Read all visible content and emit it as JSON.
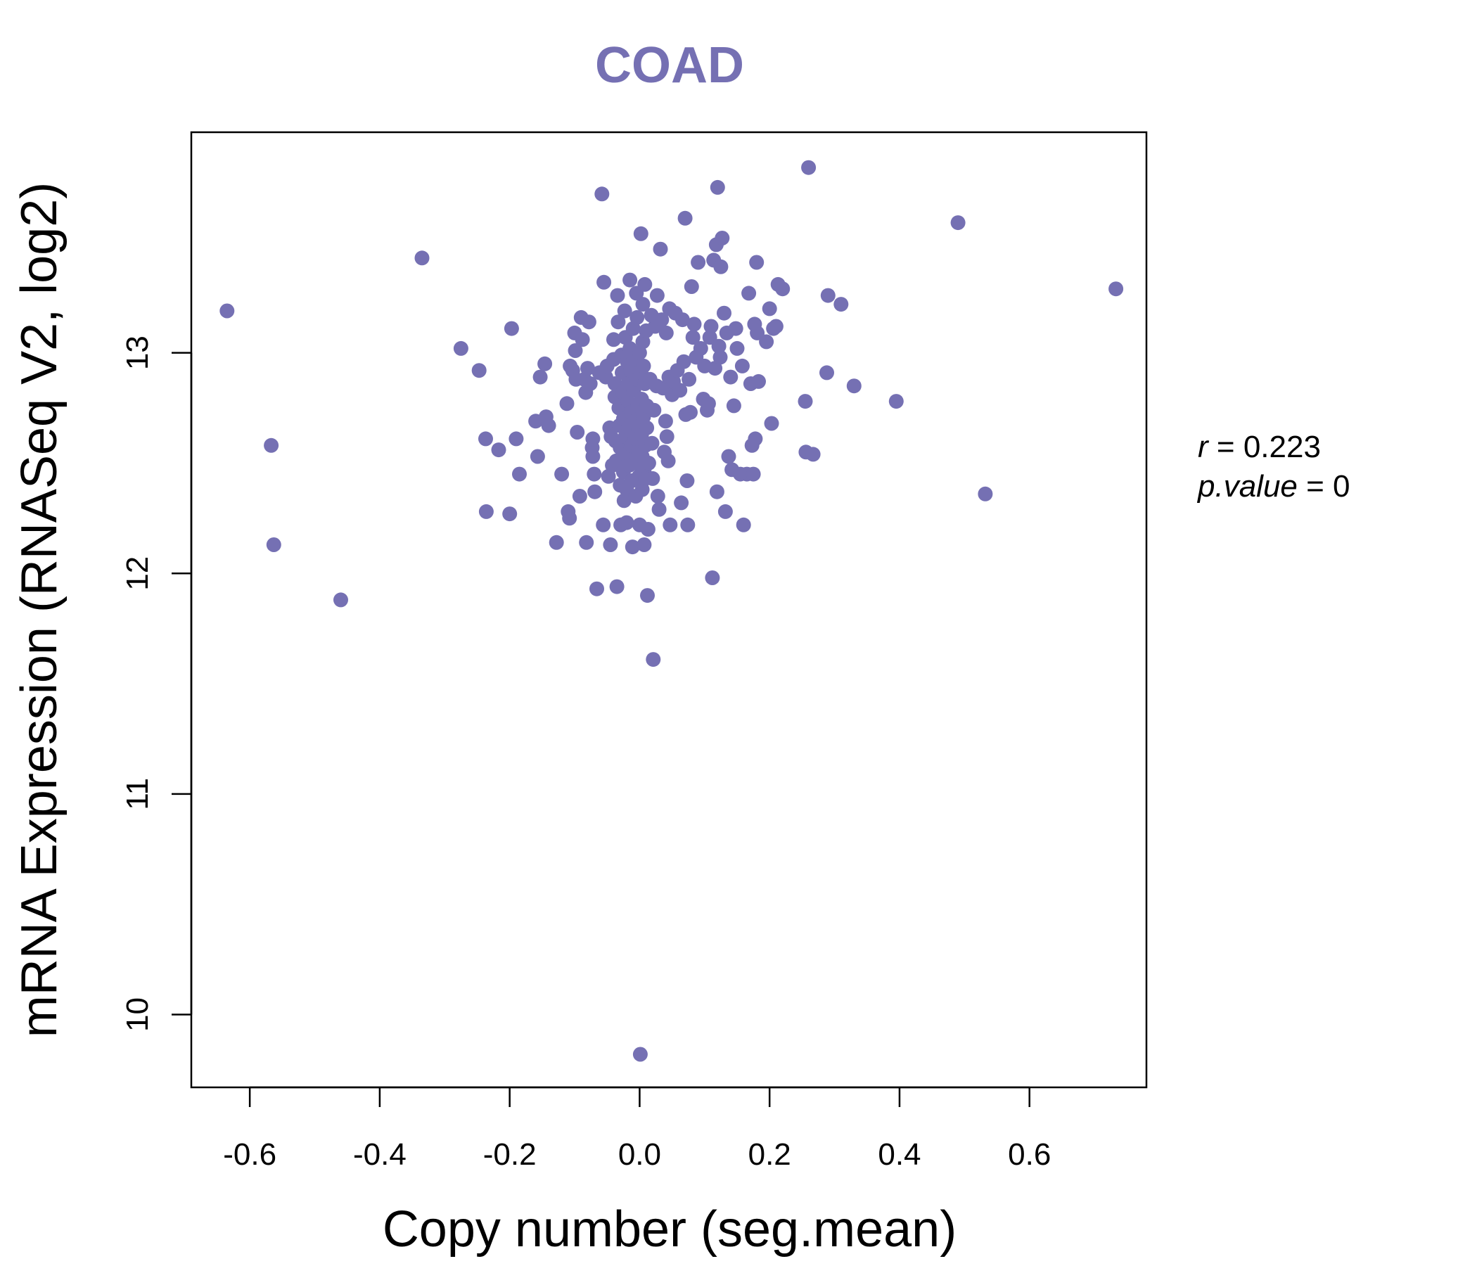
{
  "chart_data": {
    "type": "scatter",
    "title": "COAD",
    "xlabel": "Copy number (seg.mean)",
    "ylabel": "mRNA Expression (RNASeq V2, log2)",
    "xlim": [
      -0.69,
      0.78
    ],
    "ylim": [
      9.67,
      14.0
    ],
    "x_ticks": [
      -0.6,
      -0.4,
      -0.2,
      0.0,
      0.2,
      0.4,
      0.6
    ],
    "x_tick_labels": [
      "-0.6",
      "-0.4",
      "-0.2",
      "0.0",
      "0.2",
      "0.4",
      "0.6"
    ],
    "y_ticks": [
      10,
      11,
      12,
      13
    ],
    "y_tick_labels": [
      "10",
      "11",
      "12",
      "13"
    ],
    "grid": false,
    "series": [
      {
        "color": "#7570b3",
        "points": [
          [
            -0.635,
            13.19
          ],
          [
            -0.567,
            12.58
          ],
          [
            -0.563,
            12.13
          ],
          [
            -0.46,
            11.88
          ],
          [
            -0.335,
            13.43
          ],
          [
            -0.275,
            13.02
          ],
          [
            -0.247,
            12.92
          ],
          [
            -0.237,
            12.61
          ],
          [
            -0.236,
            12.28
          ],
          [
            -0.217,
            12.56
          ],
          [
            -0.2,
            12.27
          ],
          [
            -0.197,
            13.11
          ],
          [
            -0.19,
            12.61
          ],
          [
            -0.185,
            12.45
          ],
          [
            -0.16,
            12.69
          ],
          [
            -0.157,
            12.53
          ],
          [
            -0.153,
            12.89
          ],
          [
            -0.146,
            12.95
          ],
          [
            -0.144,
            12.71
          ],
          [
            -0.14,
            12.67
          ],
          [
            -0.128,
            12.14
          ],
          [
            -0.12,
            12.45
          ],
          [
            -0.112,
            12.77
          ],
          [
            -0.11,
            12.28
          ],
          [
            -0.108,
            12.25
          ],
          [
            -0.107,
            12.94
          ],
          [
            -0.103,
            12.92
          ],
          [
            -0.1,
            13.09
          ],
          [
            -0.099,
            13.01
          ],
          [
            -0.098,
            12.88
          ],
          [
            -0.096,
            12.64
          ],
          [
            -0.092,
            12.35
          ],
          [
            -0.09,
            13.16
          ],
          [
            -0.088,
            13.06
          ],
          [
            -0.085,
            12.88
          ],
          [
            -0.083,
            12.82
          ],
          [
            -0.08,
            12.93
          ],
          [
            -0.082,
            12.14
          ],
          [
            -0.078,
            13.14
          ],
          [
            -0.076,
            12.86
          ],
          [
            -0.073,
            12.57
          ],
          [
            -0.072,
            12.61
          ],
          [
            -0.072,
            12.53
          ],
          [
            -0.07,
            12.45
          ],
          [
            -0.069,
            12.37
          ],
          [
            -0.066,
            11.93
          ],
          [
            -0.062,
            12.91
          ],
          [
            -0.058,
            13.72
          ],
          [
            -0.056,
            12.22
          ],
          [
            -0.055,
            13.32
          ],
          [
            -0.052,
            12.89
          ],
          [
            -0.05,
            12.94
          ],
          [
            -0.048,
            12.44
          ],
          [
            -0.046,
            12.66
          ],
          [
            -0.045,
            12.13
          ],
          [
            -0.044,
            12.62
          ],
          [
            -0.042,
            12.49
          ],
          [
            -0.04,
            13.06
          ],
          [
            -0.04,
            12.97
          ],
          [
            -0.038,
            12.86
          ],
          [
            -0.038,
            12.8
          ],
          [
            -0.037,
            12.6
          ],
          [
            -0.036,
            12.51
          ],
          [
            -0.035,
            11.94
          ],
          [
            -0.034,
            13.26
          ],
          [
            -0.033,
            13.14
          ],
          [
            -0.032,
            12.75
          ],
          [
            -0.031,
            12.67
          ],
          [
            -0.03,
            12.57
          ],
          [
            -0.03,
            12.4
          ],
          [
            -0.029,
            12.22
          ],
          [
            -0.028,
            12.99
          ],
          [
            -0.027,
            12.91
          ],
          [
            -0.026,
            12.82
          ],
          [
            -0.025,
            12.7
          ],
          [
            -0.025,
            12.46
          ],
          [
            -0.024,
            12.33
          ],
          [
            -0.023,
            13.19
          ],
          [
            -0.022,
            13.07
          ],
          [
            -0.022,
            12.62
          ],
          [
            -0.021,
            12.54
          ],
          [
            -0.02,
            12.38
          ],
          [
            -0.02,
            12.23
          ],
          [
            -0.019,
            12.96
          ],
          [
            -0.018,
            12.86
          ],
          [
            -0.018,
            12.78
          ],
          [
            -0.017,
            12.66
          ],
          [
            -0.016,
            12.49
          ],
          [
            -0.015,
            13.33
          ],
          [
            -0.015,
            13.02
          ],
          [
            -0.014,
            12.92
          ],
          [
            -0.013,
            12.73
          ],
          [
            -0.012,
            12.58
          ],
          [
            -0.012,
            12.42
          ],
          [
            -0.011,
            12.12
          ],
          [
            -0.01,
            13.11
          ],
          [
            -0.009,
            12.97
          ],
          [
            -0.009,
            12.83
          ],
          [
            -0.008,
            12.69
          ],
          [
            -0.007,
            12.61
          ],
          [
            -0.006,
            12.5
          ],
          [
            -0.006,
            12.35
          ],
          [
            -0.005,
            13.27
          ],
          [
            -0.004,
            13.16
          ],
          [
            -0.004,
            12.88
          ],
          [
            -0.003,
            12.76
          ],
          [
            -0.002,
            12.65
          ],
          [
            -0.002,
            12.55
          ],
          [
            -0.001,
            12.44
          ],
          [
            0.0,
            13.0
          ],
          [
            0.0,
            12.22
          ],
          [
            0.001,
            9.82
          ],
          [
            0.002,
            13.54
          ],
          [
            0.002,
            12.91
          ],
          [
            0.003,
            12.79
          ],
          [
            0.003,
            12.63
          ],
          [
            0.004,
            12.53
          ],
          [
            0.004,
            12.38
          ],
          [
            0.005,
            13.22
          ],
          [
            0.005,
            13.05
          ],
          [
            0.006,
            12.94
          ],
          [
            0.006,
            12.71
          ],
          [
            0.007,
            12.47
          ],
          [
            0.007,
            12.13
          ],
          [
            0.008,
            13.31
          ],
          [
            0.008,
            12.86
          ],
          [
            0.009,
            12.58
          ],
          [
            0.009,
            12.43
          ],
          [
            0.01,
            13.1
          ],
          [
            0.011,
            12.76
          ],
          [
            0.011,
            12.66
          ],
          [
            0.012,
            11.9
          ],
          [
            0.013,
            12.2
          ],
          [
            0.014,
            12.5
          ],
          [
            0.016,
            12.88
          ],
          [
            0.018,
            13.17
          ],
          [
            0.019,
            12.59
          ],
          [
            0.02,
            12.43
          ],
          [
            0.021,
            11.61
          ],
          [
            0.022,
            12.74
          ],
          [
            0.024,
            13.12
          ],
          [
            0.026,
            12.85
          ],
          [
            0.027,
            13.26
          ],
          [
            0.028,
            12.35
          ],
          [
            0.03,
            12.29
          ],
          [
            0.032,
            13.47
          ],
          [
            0.034,
            13.15
          ],
          [
            0.036,
            12.84
          ],
          [
            0.038,
            12.55
          ],
          [
            0.04,
            12.69
          ],
          [
            0.041,
            13.09
          ],
          [
            0.042,
            12.62
          ],
          [
            0.044,
            12.51
          ],
          [
            0.045,
            12.89
          ],
          [
            0.046,
            13.2
          ],
          [
            0.047,
            12.22
          ],
          [
            0.05,
            12.81
          ],
          [
            0.052,
            12.87
          ],
          [
            0.055,
            13.18
          ],
          [
            0.058,
            12.92
          ],
          [
            0.062,
            12.83
          ],
          [
            0.064,
            12.32
          ],
          [
            0.066,
            13.15
          ],
          [
            0.068,
            12.96
          ],
          [
            0.07,
            13.61
          ],
          [
            0.071,
            12.72
          ],
          [
            0.073,
            12.42
          ],
          [
            0.074,
            12.22
          ],
          [
            0.076,
            12.88
          ],
          [
            0.078,
            12.73
          ],
          [
            0.08,
            13.3
          ],
          [
            0.082,
            13.07
          ],
          [
            0.084,
            13.13
          ],
          [
            0.087,
            12.98
          ],
          [
            0.09,
            13.41
          ],
          [
            0.094,
            13.02
          ],
          [
            0.098,
            12.79
          ],
          [
            0.1,
            12.94
          ],
          [
            0.104,
            12.74
          ],
          [
            0.106,
            12.77
          ],
          [
            0.108,
            13.07
          ],
          [
            0.11,
            13.12
          ],
          [
            0.112,
            11.98
          ],
          [
            0.114,
            13.42
          ],
          [
            0.116,
            12.93
          ],
          [
            0.118,
            13.49
          ],
          [
            0.119,
            12.37
          ],
          [
            0.12,
            13.75
          ],
          [
            0.122,
            13.03
          ],
          [
            0.124,
            12.98
          ],
          [
            0.125,
            13.39
          ],
          [
            0.127,
            13.52
          ],
          [
            0.13,
            13.18
          ],
          [
            0.132,
            12.28
          ],
          [
            0.134,
            13.09
          ],
          [
            0.137,
            12.53
          ],
          [
            0.14,
            12.89
          ],
          [
            0.142,
            12.47
          ],
          [
            0.145,
            12.76
          ],
          [
            0.148,
            13.11
          ],
          [
            0.15,
            13.02
          ],
          [
            0.155,
            12.45
          ],
          [
            0.158,
            12.94
          ],
          [
            0.16,
            12.22
          ],
          [
            0.165,
            12.45
          ],
          [
            0.168,
            13.27
          ],
          [
            0.171,
            12.86
          ],
          [
            0.173,
            12.58
          ],
          [
            0.175,
            12.45
          ],
          [
            0.177,
            13.13
          ],
          [
            0.178,
            12.61
          ],
          [
            0.18,
            13.41
          ],
          [
            0.181,
            13.09
          ],
          [
            0.183,
            12.87
          ],
          [
            0.195,
            13.05
          ],
          [
            0.2,
            13.2
          ],
          [
            0.203,
            12.68
          ],
          [
            0.206,
            13.11
          ],
          [
            0.21,
            13.12
          ],
          [
            0.213,
            13.31
          ],
          [
            0.22,
            13.29
          ],
          [
            0.255,
            12.78
          ],
          [
            0.256,
            12.55
          ],
          [
            0.26,
            13.84
          ],
          [
            0.267,
            12.54
          ],
          [
            0.288,
            12.91
          ],
          [
            0.29,
            13.26
          ],
          [
            0.31,
            13.22
          ],
          [
            0.33,
            12.85
          ],
          [
            0.395,
            12.78
          ],
          [
            0.49,
            13.59
          ],
          [
            0.532,
            12.36
          ],
          [
            0.733,
            13.29
          ]
        ]
      }
    ],
    "annotations": [
      {
        "lhs": "r",
        "rhs": "0.223"
      },
      {
        "lhs": "p.value",
        "rhs": "0"
      }
    ]
  }
}
